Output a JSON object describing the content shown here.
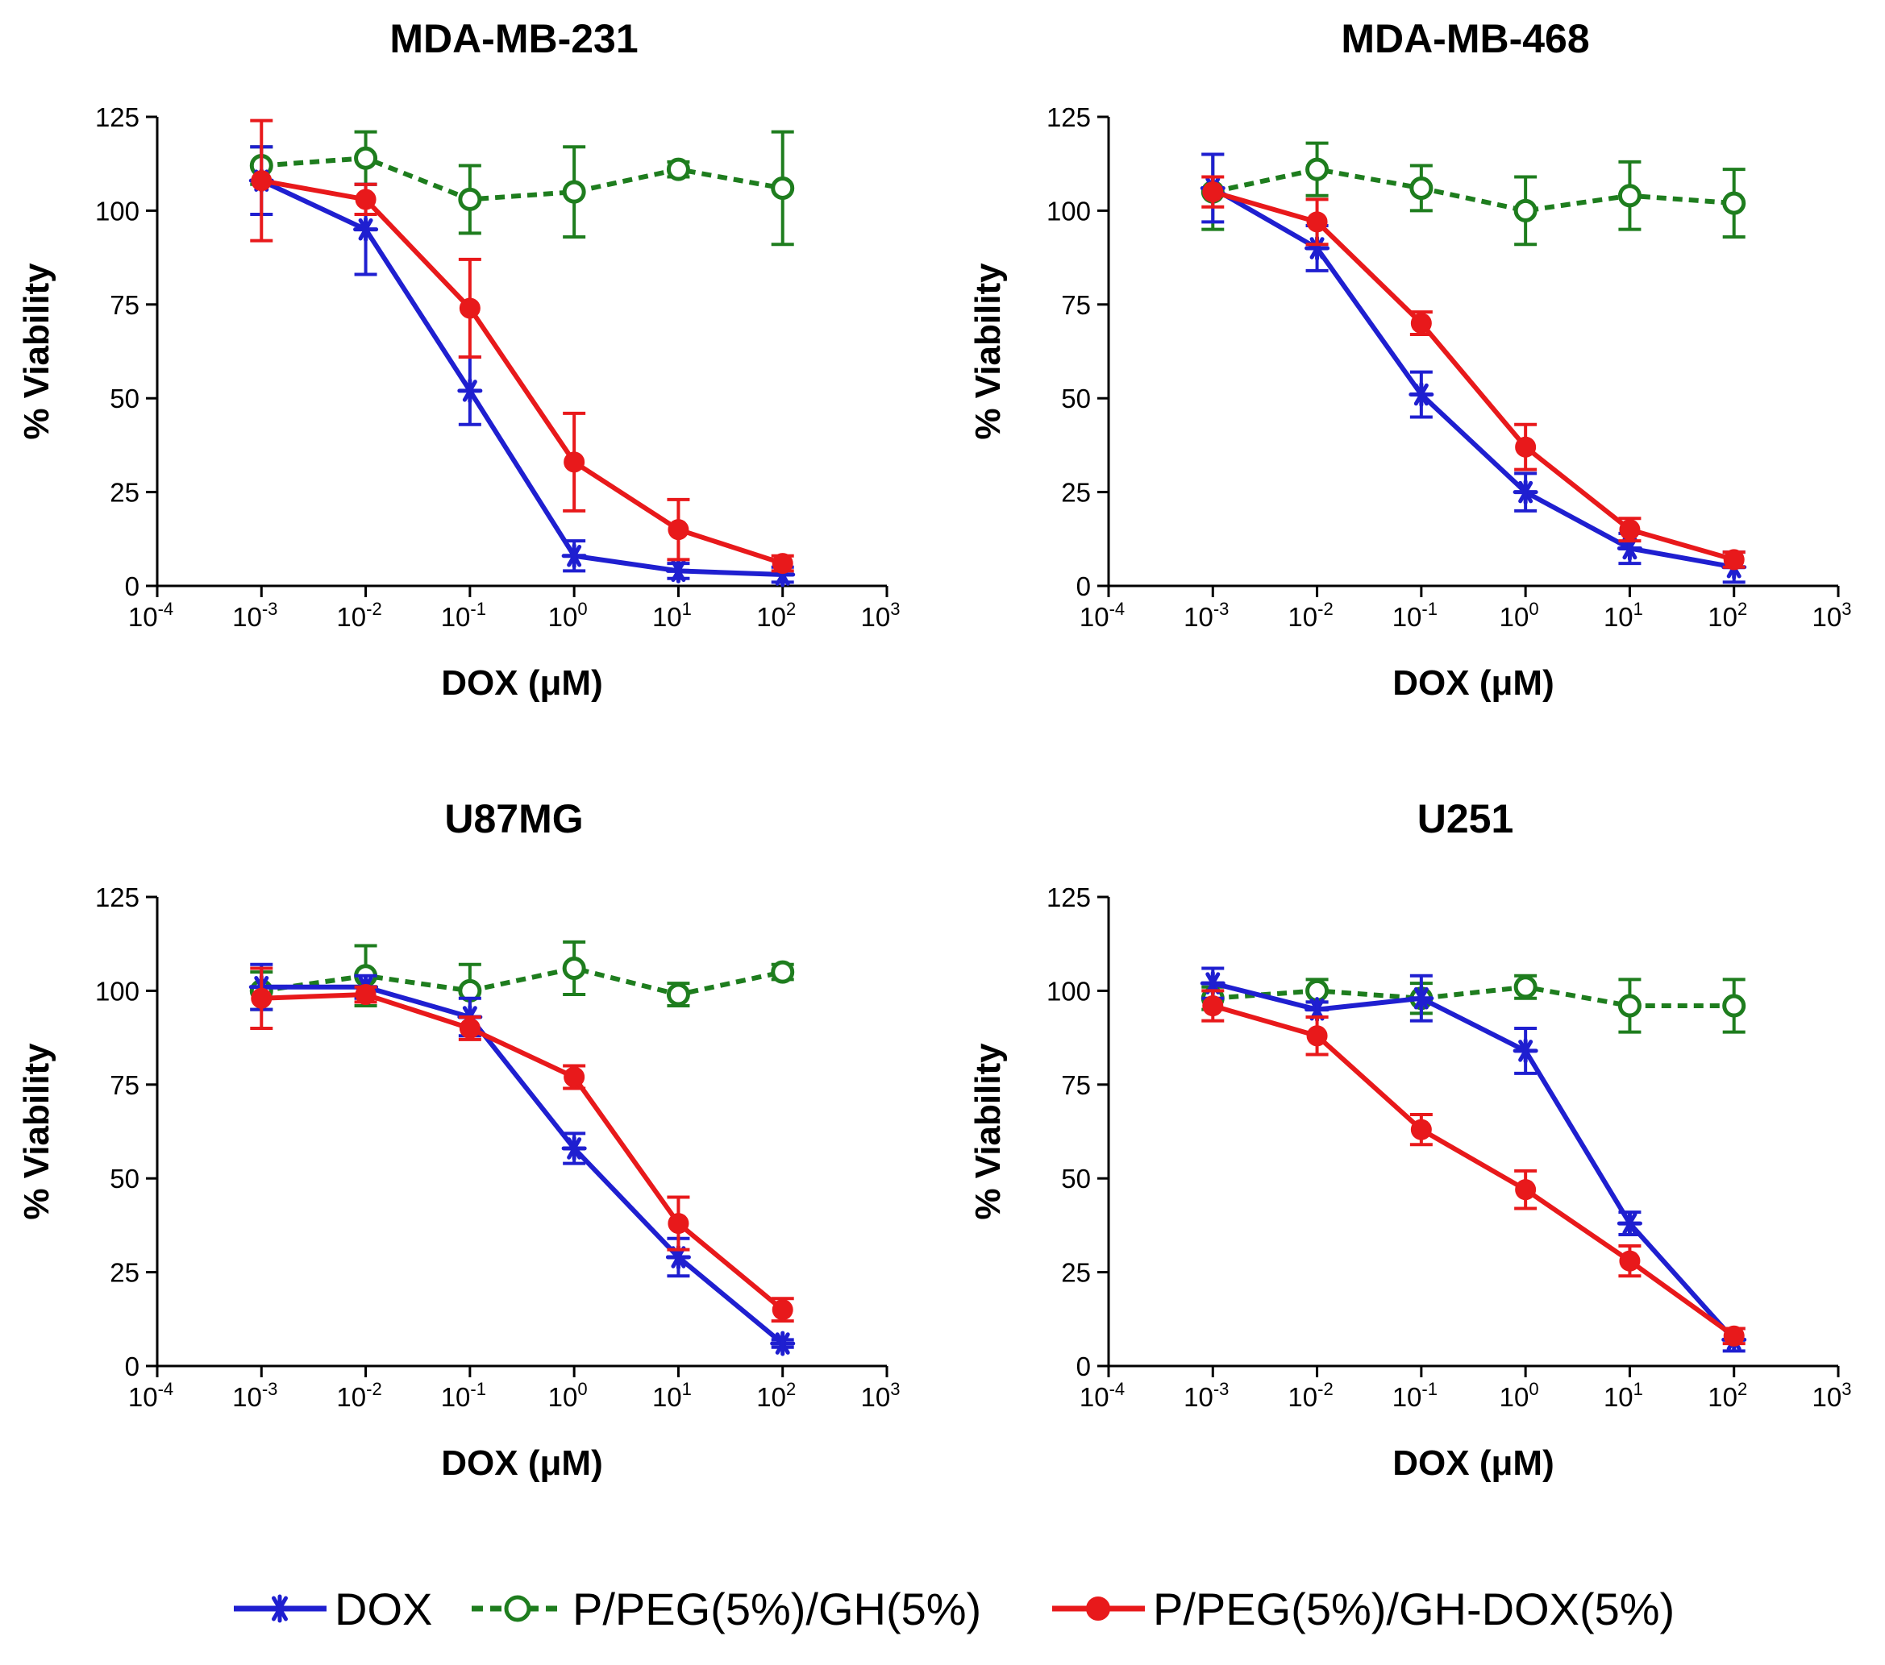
{
  "legend": {
    "items": [
      {
        "label": "DOX",
        "color": "#1f1fd0",
        "marker": "asterisk",
        "dash": false
      },
      {
        "label": "P/PEG(5%)/GH(5%)",
        "color": "#1e7d1e",
        "marker": "open-circle",
        "dash": true
      },
      {
        "label": "P/PEG(5%)/GH-DOX(5%)",
        "color": "#e8191b",
        "marker": "filled-circle",
        "dash": false
      }
    ]
  },
  "chart_data": [
    {
      "type": "line",
      "title": "MDA-MB-231",
      "xlabel": "DOX (μM)",
      "ylabel": "% Viability",
      "xscale": "log",
      "xlim": [
        0.0001,
        1000
      ],
      "ylim": [
        0,
        125
      ],
      "yticks": [
        "0",
        "25",
        "50",
        "75",
        "100",
        "125"
      ],
      "xticks": [
        {
          "base": "10",
          "exp": "-4"
        },
        {
          "base": "10",
          "exp": "-3"
        },
        {
          "base": "10",
          "exp": "-2"
        },
        {
          "base": "10",
          "exp": "-1"
        },
        {
          "base": "10",
          "exp": "0"
        },
        {
          "base": "10",
          "exp": "1"
        },
        {
          "base": "10",
          "exp": "2"
        },
        {
          "base": "10",
          "exp": "3"
        }
      ],
      "x": [
        0.001,
        0.01,
        0.1,
        1,
        10,
        100
      ],
      "series": [
        {
          "name": "DOX",
          "values": [
            108,
            95,
            52,
            8,
            4,
            3
          ],
          "errors": [
            9,
            12,
            9,
            4,
            2,
            2
          ]
        },
        {
          "name": "P/PEG(5%)/GH(5%)",
          "values": [
            112,
            114,
            103,
            105,
            111,
            106
          ],
          "errors": [
            5,
            7,
            9,
            12,
            2,
            15
          ]
        },
        {
          "name": "P/PEG(5%)/GH-DOX(5%)",
          "values": [
            108,
            103,
            74,
            33,
            15,
            6
          ],
          "errors": [
            16,
            4,
            13,
            13,
            8,
            2
          ]
        }
      ]
    },
    {
      "type": "line",
      "title": "MDA-MB-468",
      "xlabel": "DOX (μM)",
      "ylabel": "% Viability",
      "xscale": "log",
      "xlim": [
        0.0001,
        1000
      ],
      "ylim": [
        0,
        125
      ],
      "yticks": [
        "0",
        "25",
        "50",
        "75",
        "100",
        "125"
      ],
      "xticks": [
        {
          "base": "10",
          "exp": "-4"
        },
        {
          "base": "10",
          "exp": "-3"
        },
        {
          "base": "10",
          "exp": "-2"
        },
        {
          "base": "10",
          "exp": "-1"
        },
        {
          "base": "10",
          "exp": "0"
        },
        {
          "base": "10",
          "exp": "1"
        },
        {
          "base": "10",
          "exp": "2"
        },
        {
          "base": "10",
          "exp": "3"
        }
      ],
      "x": [
        0.001,
        0.01,
        0.1,
        1,
        10,
        100
      ],
      "series": [
        {
          "name": "DOX",
          "values": [
            106,
            90,
            51,
            25,
            10,
            5
          ],
          "errors": [
            9,
            6,
            6,
            5,
            4,
            4
          ]
        },
        {
          "name": "P/PEG(5%)/GH(5%)",
          "values": [
            105,
            111,
            106,
            100,
            104,
            102
          ],
          "errors": [
            10,
            7,
            6,
            9,
            9,
            9
          ]
        },
        {
          "name": "P/PEG(5%)/GH-DOX(5%)",
          "values": [
            105,
            97,
            70,
            37,
            15,
            7
          ],
          "errors": [
            4,
            6,
            3,
            6,
            3,
            2
          ]
        }
      ]
    },
    {
      "type": "line",
      "title": "U87MG",
      "xlabel": "DOX (μM)",
      "ylabel": "% Viability",
      "xscale": "log",
      "xlim": [
        0.0001,
        1000
      ],
      "ylim": [
        0,
        125
      ],
      "yticks": [
        "0",
        "25",
        "50",
        "75",
        "100",
        "125"
      ],
      "xticks": [
        {
          "base": "10",
          "exp": "-4"
        },
        {
          "base": "10",
          "exp": "-3"
        },
        {
          "base": "10",
          "exp": "-2"
        },
        {
          "base": "10",
          "exp": "-1"
        },
        {
          "base": "10",
          "exp": "0"
        },
        {
          "base": "10",
          "exp": "1"
        },
        {
          "base": "10",
          "exp": "2"
        },
        {
          "base": "10",
          "exp": "3"
        }
      ],
      "x": [
        0.001,
        0.01,
        0.1,
        1,
        10,
        100
      ],
      "series": [
        {
          "name": "DOX",
          "values": [
            101,
            101,
            93,
            58,
            29,
            6
          ],
          "errors": [
            6,
            3,
            5,
            4,
            5,
            1
          ]
        },
        {
          "name": "P/PEG(5%)/GH(5%)",
          "values": [
            100,
            104,
            100,
            106,
            99,
            105
          ],
          "errors": [
            5,
            8,
            7,
            7,
            3,
            2
          ]
        },
        {
          "name": "P/PEG(5%)/GH-DOX(5%)",
          "values": [
            98,
            99,
            90,
            77,
            38,
            15
          ],
          "errors": [
            8,
            2,
            3,
            3,
            7,
            3
          ]
        }
      ]
    },
    {
      "type": "line",
      "title": "U251",
      "xlabel": "DOX (μM)",
      "ylabel": "% Viability",
      "xscale": "log",
      "xlim": [
        0.0001,
        1000
      ],
      "ylim": [
        0,
        125
      ],
      "yticks": [
        "0",
        "25",
        "50",
        "75",
        "100",
        "125"
      ],
      "xticks": [
        {
          "base": "10",
          "exp": "-4"
        },
        {
          "base": "10",
          "exp": "-3"
        },
        {
          "base": "10",
          "exp": "-2"
        },
        {
          "base": "10",
          "exp": "-1"
        },
        {
          "base": "10",
          "exp": "0"
        },
        {
          "base": "10",
          "exp": "1"
        },
        {
          "base": "10",
          "exp": "2"
        },
        {
          "base": "10",
          "exp": "3"
        }
      ],
      "x": [
        0.001,
        0.01,
        0.1,
        1,
        10,
        100
      ],
      "series": [
        {
          "name": "DOX",
          "values": [
            102,
            95,
            98,
            84,
            38,
            7
          ],
          "errors": [
            4,
            2,
            6,
            6,
            3,
            3
          ]
        },
        {
          "name": "P/PEG(5%)/GH(5%)",
          "values": [
            98,
            100,
            98,
            101,
            96,
            96
          ],
          "errors": [
            3,
            3,
            4,
            3,
            7,
            7
          ]
        },
        {
          "name": "P/PEG(5%)/GH-DOX(5%)",
          "values": [
            96,
            88,
            63,
            47,
            28,
            8
          ],
          "errors": [
            4,
            5,
            4,
            5,
            4,
            2
          ]
        }
      ]
    }
  ]
}
